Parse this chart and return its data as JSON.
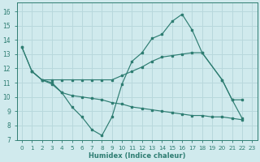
{
  "bg_color": "#d0eaed",
  "grid_color": "#b8d8dc",
  "line_color": "#2e7d72",
  "xlabel": "Humidex (Indice chaleur)",
  "xlim": [
    -0.5,
    23.5
  ],
  "ylim": [
    7,
    16.6
  ],
  "yticks": [
    7,
    8,
    9,
    10,
    11,
    12,
    13,
    14,
    15,
    16
  ],
  "xticks": [
    0,
    1,
    2,
    3,
    4,
    5,
    6,
    7,
    8,
    9,
    10,
    11,
    12,
    13,
    14,
    15,
    16,
    17,
    18,
    19,
    20,
    21,
    22,
    23
  ],
  "line1_x": [
    0,
    1,
    2,
    3,
    4,
    5,
    6,
    7,
    8,
    9,
    10,
    11,
    12,
    13,
    14,
    15,
    16,
    17,
    18,
    20,
    21,
    22
  ],
  "line1_y": [
    13.5,
    11.8,
    11.2,
    11.2,
    11.2,
    11.2,
    11.2,
    11.2,
    11.2,
    11.2,
    11.5,
    11.8,
    12.1,
    12.5,
    12.8,
    12.9,
    13.0,
    13.1,
    13.1,
    11.2,
    9.8,
    9.8
  ],
  "line2_x": [
    0,
    1,
    2,
    3,
    4,
    5,
    6,
    7,
    8,
    9,
    10,
    11,
    12,
    13,
    14,
    15,
    16,
    17,
    18,
    20,
    21,
    22
  ],
  "line2_y": [
    13.5,
    11.8,
    11.2,
    11.0,
    10.3,
    9.3,
    8.6,
    7.7,
    7.3,
    8.6,
    10.9,
    12.5,
    13.1,
    14.1,
    14.4,
    15.3,
    15.8,
    14.7,
    13.1,
    11.2,
    9.8,
    8.5
  ],
  "line3_x": [
    1,
    2,
    3,
    4,
    5,
    6,
    7,
    8,
    9,
    10,
    11,
    12,
    13,
    14,
    15,
    16,
    17,
    18,
    19,
    20,
    21,
    22
  ],
  "line3_y": [
    11.8,
    11.2,
    10.9,
    10.3,
    10.1,
    10.0,
    9.9,
    9.8,
    9.6,
    9.5,
    9.3,
    9.2,
    9.1,
    9.0,
    8.9,
    8.8,
    8.7,
    8.7,
    8.6,
    8.6,
    8.5,
    8.4
  ]
}
